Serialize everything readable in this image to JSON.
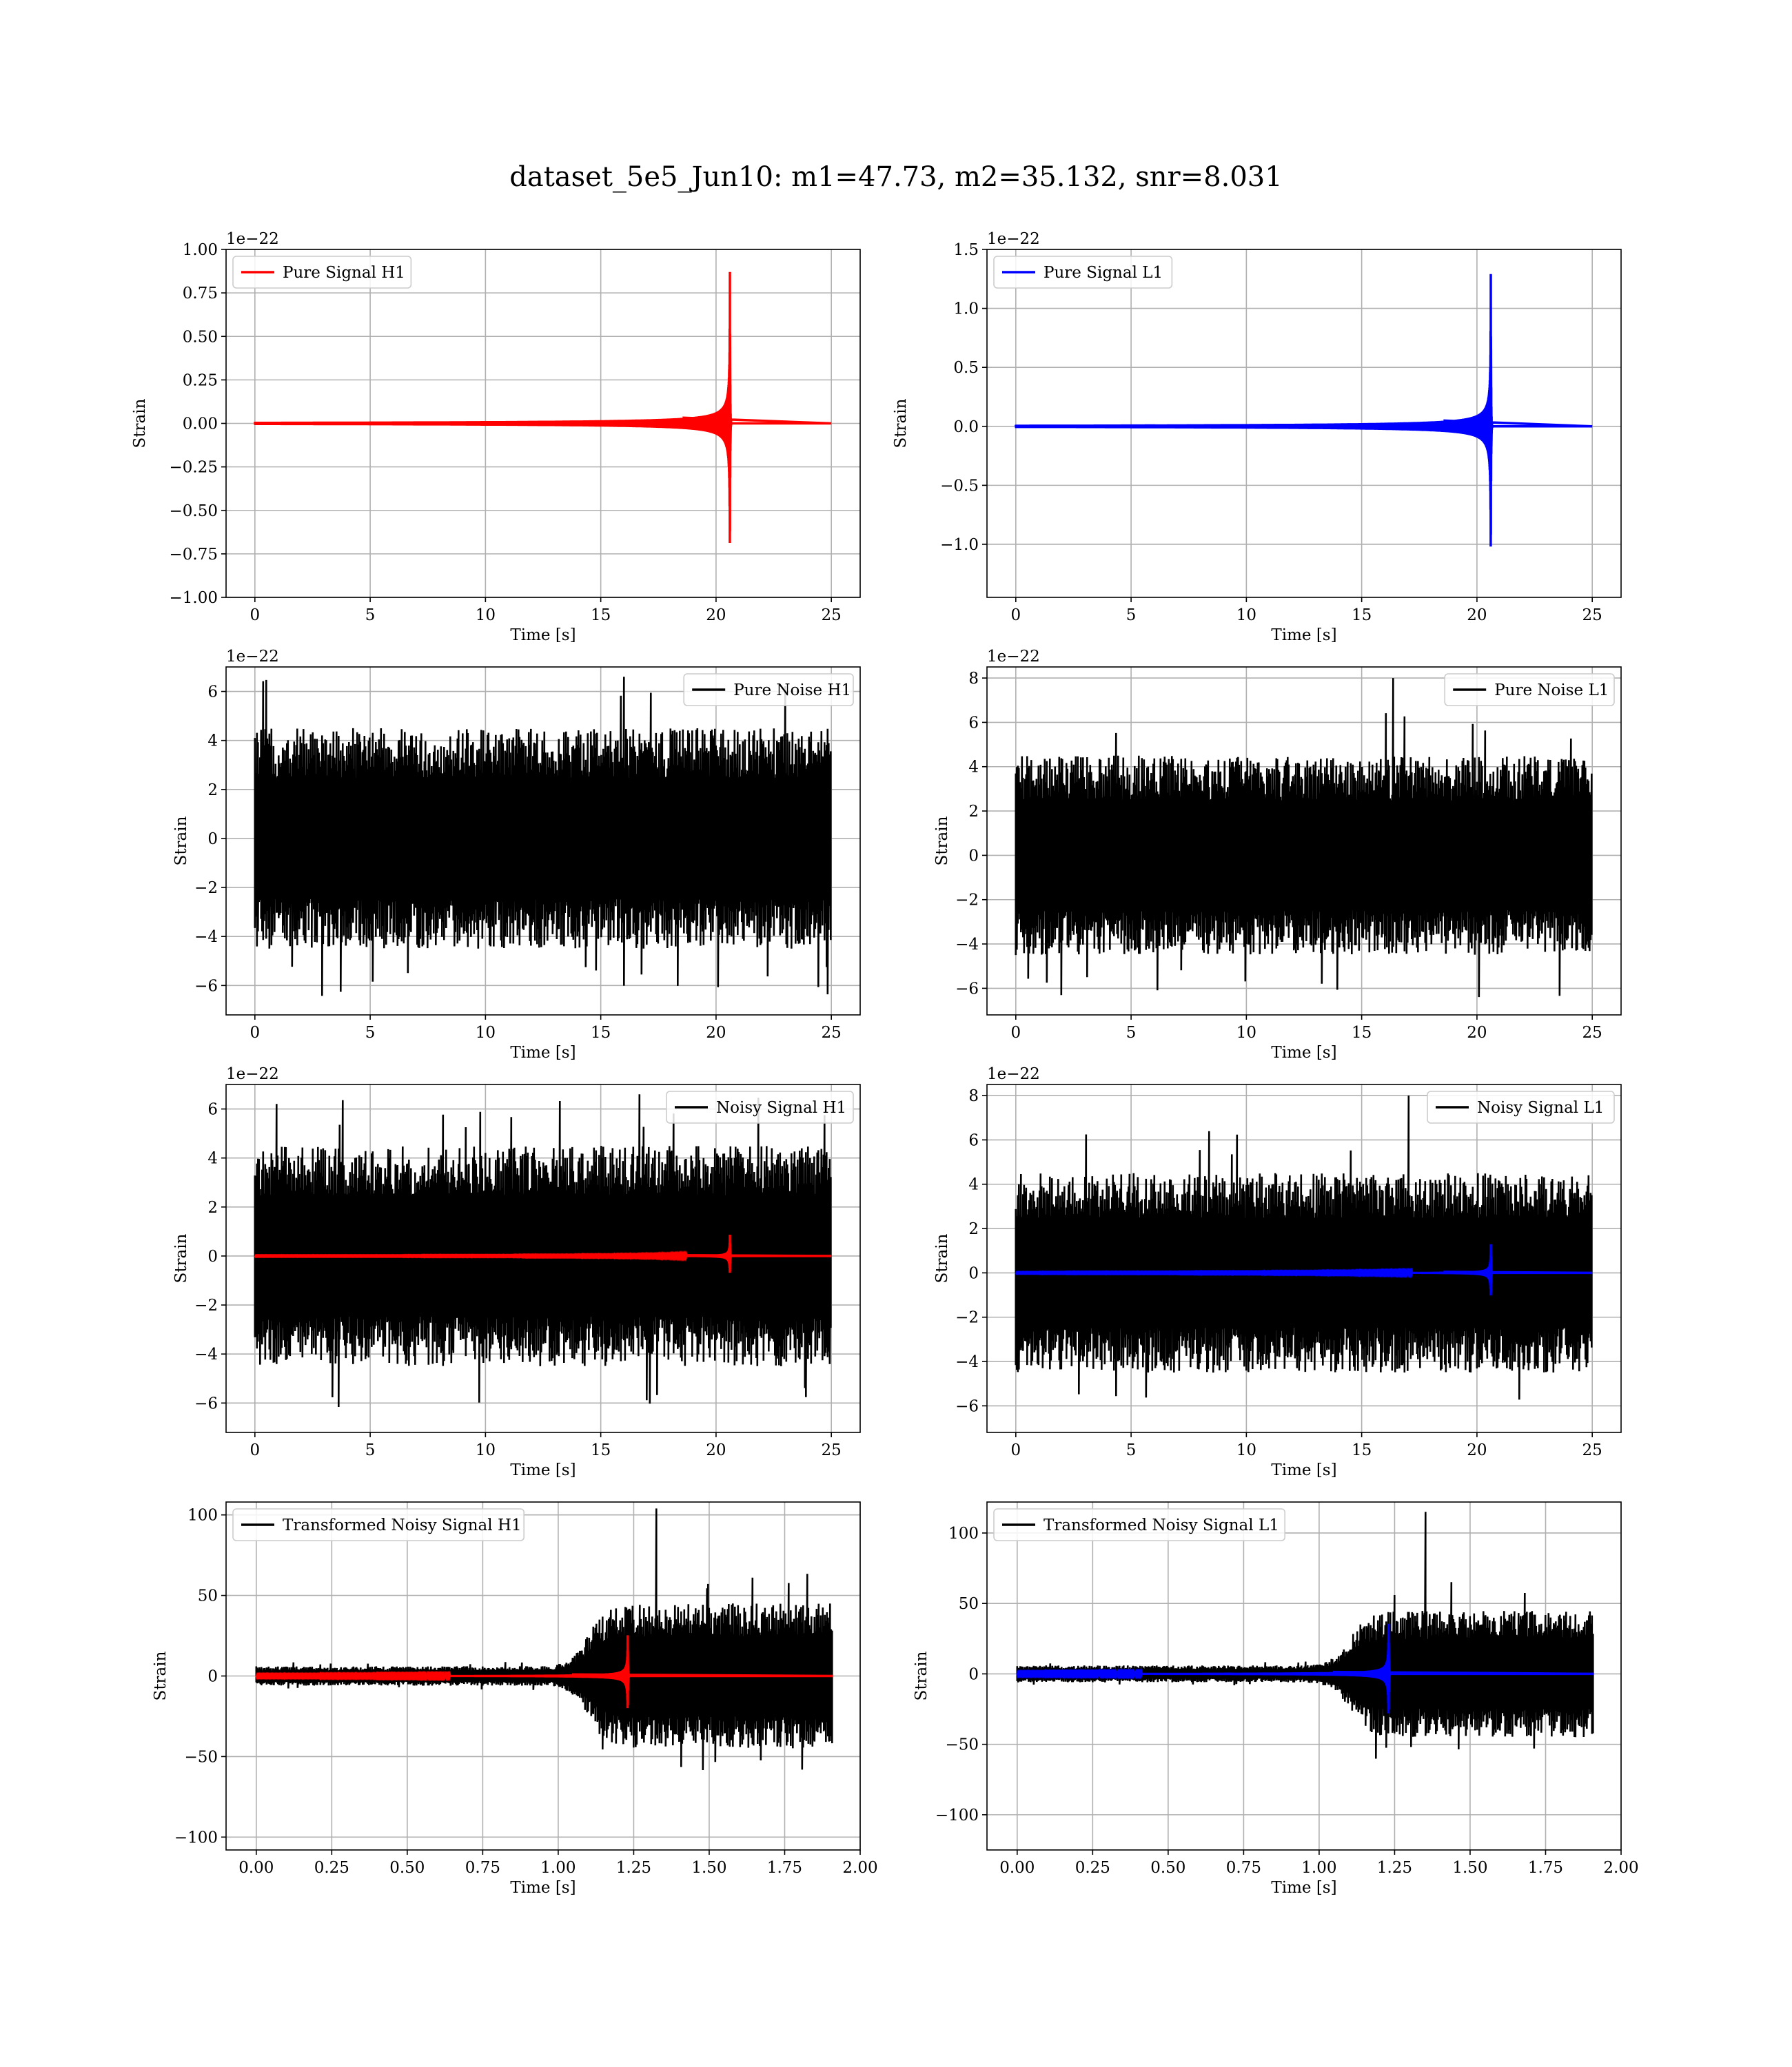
{
  "figure": {
    "title": "dataset_5e5_Jun10: m1=47.73, m2=35.132, snr=8.031"
  },
  "chart_data": [
    {
      "type": "line",
      "id": "pure-signal-h1",
      "xlabel": "Time [s]",
      "ylabel": "Strain",
      "offset_text": "1e−22",
      "xlim": [
        -1.25,
        26.25
      ],
      "ylim": [
        -1.0,
        1.0
      ],
      "xticks": [
        0,
        5,
        10,
        15,
        20,
        25
      ],
      "xtick_labels": [
        "0",
        "5",
        "10",
        "15",
        "20",
        "25"
      ],
      "yticks": [
        -1.0,
        -0.75,
        -0.5,
        -0.25,
        0.0,
        0.25,
        0.5,
        0.75,
        1.0
      ],
      "ytick_labels": [
        "−1.00",
        "−0.75",
        "−0.50",
        "−0.25",
        "0.00",
        "0.25",
        "0.50",
        "0.75",
        "1.00"
      ],
      "grid": true,
      "legend_position": "upper-left",
      "series": [
        {
          "name": "Pure Signal H1",
          "kind": "chirp",
          "color": "#ff0000",
          "x_start": 0,
          "x_end": 25,
          "merger_time": 20.6,
          "peak": 0.93,
          "noise_level": 0
        }
      ]
    },
    {
      "type": "line",
      "id": "pure-signal-l1",
      "xlabel": "Time [s]",
      "ylabel": "Strain",
      "offset_text": "1e−22",
      "xlim": [
        -1.25,
        26.25
      ],
      "ylim": [
        -1.45,
        1.5
      ],
      "xticks": [
        0,
        5,
        10,
        15,
        20,
        25
      ],
      "xtick_labels": [
        "0",
        "5",
        "10",
        "15",
        "20",
        "25"
      ],
      "yticks": [
        -1.0,
        -0.5,
        0.0,
        0.5,
        1.0,
        1.5
      ],
      "ytick_labels": [
        "−1.0",
        "−0.5",
        "0.0",
        "0.5",
        "1.0",
        "1.5"
      ],
      "grid": true,
      "legend_position": "upper-left",
      "series": [
        {
          "name": "Pure Signal L1",
          "kind": "chirp",
          "color": "#0000ff",
          "x_start": 0,
          "x_end": 25,
          "merger_time": 20.6,
          "peak": 1.38,
          "noise_level": 0
        }
      ]
    },
    {
      "type": "line",
      "id": "pure-noise-h1",
      "xlabel": "Time [s]",
      "ylabel": "Strain",
      "offset_text": "1e−22",
      "xlim": [
        -1.25,
        26.25
      ],
      "ylim": [
        -7.2,
        7.0
      ],
      "xticks": [
        0,
        5,
        10,
        15,
        20,
        25
      ],
      "xtick_labels": [
        "0",
        "5",
        "10",
        "15",
        "20",
        "25"
      ],
      "yticks": [
        -6,
        -4,
        -2,
        0,
        2,
        4,
        6
      ],
      "ytick_labels": [
        "−6",
        "−4",
        "−2",
        "0",
        "2",
        "4",
        "6"
      ],
      "grid": true,
      "legend_position": "upper-right",
      "series": [
        {
          "name": "Pure Noise H1",
          "kind": "noise",
          "color": "#000000",
          "x_start": 0,
          "x_end": 25,
          "noise_level": 4.5,
          "spike_max": 6.6
        }
      ]
    },
    {
      "type": "line",
      "id": "pure-noise-l1",
      "xlabel": "Time [s]",
      "ylabel": "Strain",
      "offset_text": "1e−22",
      "xlim": [
        -1.25,
        26.25
      ],
      "ylim": [
        -7.2,
        8.5
      ],
      "xticks": [
        0,
        5,
        10,
        15,
        20,
        25
      ],
      "xtick_labels": [
        "0",
        "5",
        "10",
        "15",
        "20",
        "25"
      ],
      "yticks": [
        -6,
        -4,
        -2,
        0,
        2,
        4,
        6,
        8
      ],
      "ytick_labels": [
        "−6",
        "−4",
        "−2",
        "0",
        "2",
        "4",
        "6",
        "8"
      ],
      "grid": true,
      "legend_position": "upper-right",
      "series": [
        {
          "name": "Pure Noise L1",
          "kind": "noise",
          "color": "#000000",
          "x_start": 0,
          "x_end": 25,
          "noise_level": 4.5,
          "spike_max": 8.0
        }
      ]
    },
    {
      "type": "line",
      "id": "noisy-signal-h1",
      "xlabel": "Time [s]",
      "ylabel": "Strain",
      "offset_text": "1e−22",
      "xlim": [
        -1.25,
        26.25
      ],
      "ylim": [
        -7.2,
        7.0
      ],
      "xticks": [
        0,
        5,
        10,
        15,
        20,
        25
      ],
      "xtick_labels": [
        "0",
        "5",
        "10",
        "15",
        "20",
        "25"
      ],
      "yticks": [
        -6,
        -4,
        -2,
        0,
        2,
        4,
        6
      ],
      "ytick_labels": [
        "−6",
        "−4",
        "−2",
        "0",
        "2",
        "4",
        "6"
      ],
      "grid": true,
      "legend_position": "upper-right",
      "series": [
        {
          "name": "Noisy Signal H1",
          "kind": "noise",
          "color": "#000000",
          "x_start": 0,
          "x_end": 25,
          "noise_level": 4.5,
          "spike_max": 6.6
        },
        {
          "name": "",
          "kind": "chirp",
          "color": "#ff0000",
          "x_start": 0,
          "x_end": 25,
          "merger_time": 20.6,
          "peak": 0.93
        }
      ]
    },
    {
      "type": "line",
      "id": "noisy-signal-l1",
      "xlabel": "Time [s]",
      "ylabel": "Strain",
      "offset_text": "1e−22",
      "xlim": [
        -1.25,
        26.25
      ],
      "ylim": [
        -7.2,
        8.5
      ],
      "xticks": [
        0,
        5,
        10,
        15,
        20,
        25
      ],
      "xtick_labels": [
        "0",
        "5",
        "10",
        "15",
        "20",
        "25"
      ],
      "yticks": [
        -6,
        -4,
        -2,
        0,
        2,
        4,
        6,
        8
      ],
      "ytick_labels": [
        "−6",
        "−4",
        "−2",
        "0",
        "2",
        "4",
        "6",
        "8"
      ],
      "grid": true,
      "legend_position": "upper-right",
      "series": [
        {
          "name": "Noisy Signal L1",
          "kind": "noise",
          "color": "#000000",
          "x_start": 0,
          "x_end": 25,
          "noise_level": 4.5,
          "spike_max": 8.0
        },
        {
          "name": "",
          "kind": "chirp",
          "color": "#0000ff",
          "x_start": 0,
          "x_end": 25,
          "merger_time": 20.6,
          "peak": 1.38
        }
      ]
    },
    {
      "type": "line",
      "id": "transformed-noisy-signal-h1",
      "xlabel": "Time [s]",
      "ylabel": "Strain",
      "offset_text": "",
      "xlim": [
        -0.1,
        2.0
      ],
      "ylim": [
        -108,
        108
      ],
      "xticks": [
        0.0,
        0.25,
        0.5,
        0.75,
        1.0,
        1.25,
        1.5,
        1.75,
        2.0
      ],
      "xtick_labels": [
        "0.00",
        "0.25",
        "0.50",
        "0.75",
        "1.00",
        "1.25",
        "1.50",
        "1.75",
        "2.00"
      ],
      "yticks": [
        -100,
        -50,
        0,
        50,
        100
      ],
      "ytick_labels": [
        "−100",
        "−50",
        "0",
        "50",
        "100"
      ],
      "grid": true,
      "legend_position": "upper-left",
      "series": [
        {
          "name": "Transformed Noisy Signal H1",
          "kind": "transformed-noise",
          "color": "#000000",
          "x_start": 0,
          "x_end": 1.91,
          "early_level": 6,
          "late_level": 45,
          "transition": 1.1,
          "spike_max": 104
        },
        {
          "name": "",
          "kind": "transformed-chirp",
          "color": "#ff0000",
          "x_start": 0,
          "x_end": 1.91,
          "merger_time": 1.23,
          "peak": 27
        }
      ]
    },
    {
      "type": "line",
      "id": "transformed-noisy-signal-l1",
      "xlabel": "Time [s]",
      "ylabel": "Strain",
      "offset_text": "",
      "xlim": [
        -0.1,
        2.0
      ],
      "ylim": [
        -125,
        122
      ],
      "xticks": [
        0.0,
        0.25,
        0.5,
        0.75,
        1.0,
        1.25,
        1.5,
        1.75,
        2.0
      ],
      "xtick_labels": [
        "0.00",
        "0.25",
        "0.50",
        "0.75",
        "1.00",
        "1.25",
        "1.50",
        "1.75",
        "2.00"
      ],
      "yticks": [
        -100,
        -50,
        0,
        50,
        100
      ],
      "ytick_labels": [
        "−100",
        "−50",
        "0",
        "50",
        "100"
      ],
      "grid": true,
      "legend_position": "upper-left",
      "series": [
        {
          "name": "Transformed Noisy Signal L1",
          "kind": "transformed-noise",
          "color": "#000000",
          "x_start": 0,
          "x_end": 1.91,
          "early_level": 6,
          "late_level": 45,
          "transition": 1.1,
          "spike_max": 115
        },
        {
          "name": "",
          "kind": "transformed-chirp",
          "color": "#0000ff",
          "x_start": 0,
          "x_end": 1.91,
          "merger_time": 1.23,
          "peak": 38
        }
      ]
    }
  ]
}
